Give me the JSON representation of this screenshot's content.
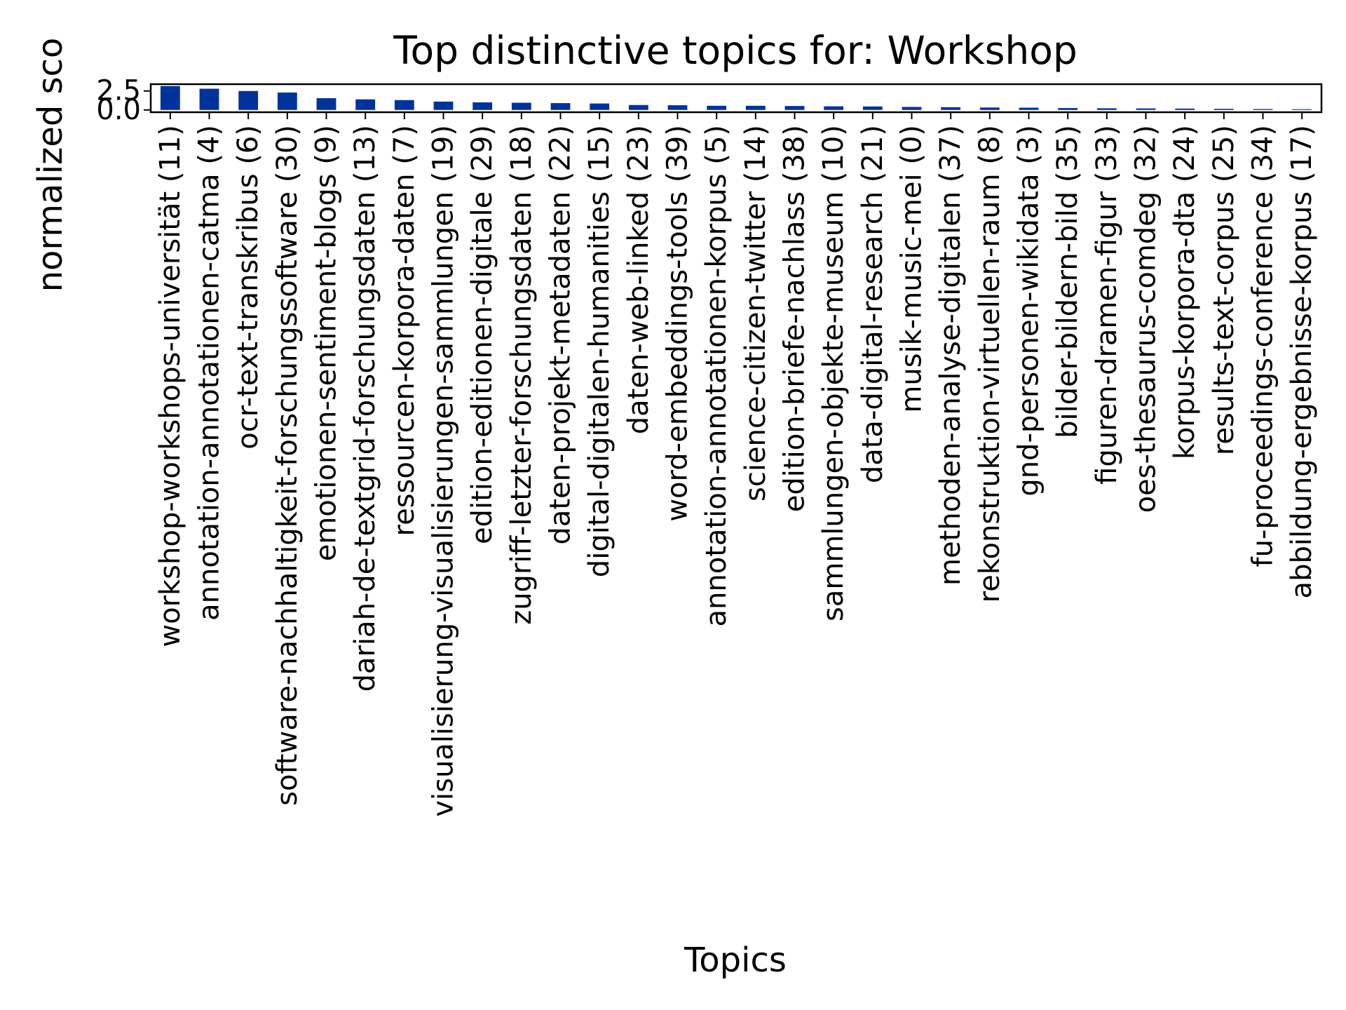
{
  "chart_data": {
    "type": "bar",
    "title": "Top distinctive topics for: Workshop",
    "xlabel": "Topics",
    "ylabel": "normalized sco",
    "ylim": [
      -0.3,
      3.4
    ],
    "yticks": [
      0.0,
      2.5
    ],
    "ytick_labels": [
      "0.0",
      "2.5"
    ],
    "grid": false,
    "legend": "none",
    "bar_color": "#003399",
    "categories": [
      "workshop-workshops-universität (11)",
      "annotation-annotationen-catma (4)",
      "ocr-text-transkribus (6)",
      "software-nachhaltigkeit-forschungssoftware (30)",
      "emotionen-sentiment-blogs (9)",
      "dariah-de-textgrid-forschungsdaten (13)",
      "ressourcen-korpora-daten (7)",
      "visualisierung-visualisierungen-sammlungen (19)",
      "edition-editionen-digitale (29)",
      "zugriff-letzter-forschungsdaten (18)",
      "daten-projekt-metadaten (22)",
      "digital-digitalen-humanities (15)",
      "daten-web-linked (23)",
      "word-embeddings-tools (39)",
      "annotation-annotationen-korpus (5)",
      "science-citizen-twitter (14)",
      "edition-briefe-nachlass (38)",
      "sammlungen-objekte-museum (10)",
      "data-digital-research (21)",
      "musik-music-mei (0)",
      "methoden-analyse-digitalen (37)",
      "rekonstruktion-virtuellen-raum (8)",
      "gnd-personen-wikidata (3)",
      "bilder-bildern-bild (35)",
      "figuren-dramen-figur (33)",
      "oes-thesaurus-comdeg (32)",
      "korpus-korpora-dta (24)",
      "results-text-corpus (25)",
      "fu-proceedings-conference (34)",
      "abbildung-ergebnisse-korpus (17)"
    ],
    "values": [
      3.15,
      2.8,
      2.5,
      2.3,
      1.55,
      1.4,
      1.3,
      1.1,
      1.0,
      0.95,
      0.9,
      0.85,
      0.65,
      0.62,
      0.55,
      0.55,
      0.52,
      0.48,
      0.46,
      0.4,
      0.36,
      0.32,
      0.3,
      0.25,
      0.22,
      0.2,
      0.18,
      0.15,
      0.12,
      0.1
    ]
  }
}
